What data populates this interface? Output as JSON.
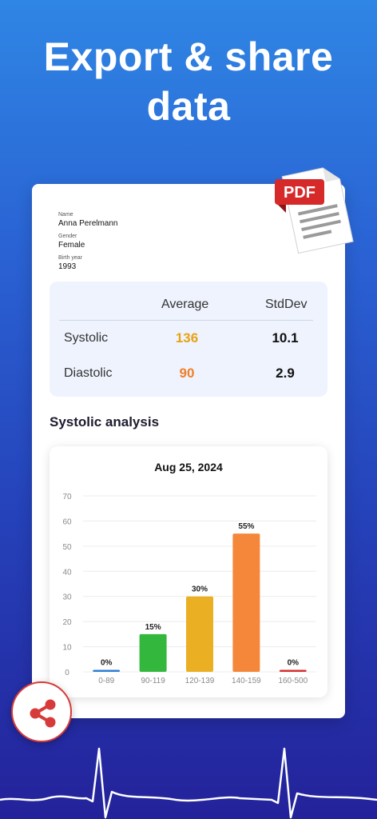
{
  "headline": {
    "line1": "Export & share",
    "line2": "data"
  },
  "pdf_badge": "PDF",
  "profile": {
    "name_label": "Name",
    "name": "Anna Perelmann",
    "gender_label": "Gender",
    "gender": "Female",
    "birth_label": "Birth year",
    "birth_year": "1993"
  },
  "stats": {
    "col_average": "Average",
    "col_stddev": "StdDev",
    "rows": [
      {
        "label": "Systolic",
        "average": "136",
        "stddev": "10.1",
        "avg_color": "#e8a317"
      },
      {
        "label": "Diastolic",
        "average": "90",
        "stddev": "2.9",
        "avg_color": "#f07f2a"
      }
    ]
  },
  "section_title": "Systolic analysis",
  "chart_data": {
    "type": "bar",
    "title": "Aug 25, 2024",
    "categories": [
      "0-89",
      "90-119",
      "120-139",
      "140-159",
      "160-500"
    ],
    "values": [
      0,
      15,
      30,
      55,
      0
    ],
    "data_labels": [
      "0%",
      "15%",
      "30%",
      "55%",
      "0%"
    ],
    "colors": [
      "#2f7fd6",
      "#34b73d",
      "#eaaf22",
      "#f5873a",
      "#d63232"
    ],
    "ylim": [
      0,
      70
    ],
    "yticks": [
      0,
      10,
      20,
      30,
      40,
      50,
      60,
      70
    ],
    "grid": true,
    "xlabel": "",
    "ylabel": ""
  },
  "colors": {
    "accent": "#d73a3a",
    "background_top": "#2f86e4",
    "background_bottom": "#24229a"
  },
  "icons": {
    "share": "share-icon",
    "pdf": "pdf-document-icon",
    "ecg": "ecg-line"
  }
}
